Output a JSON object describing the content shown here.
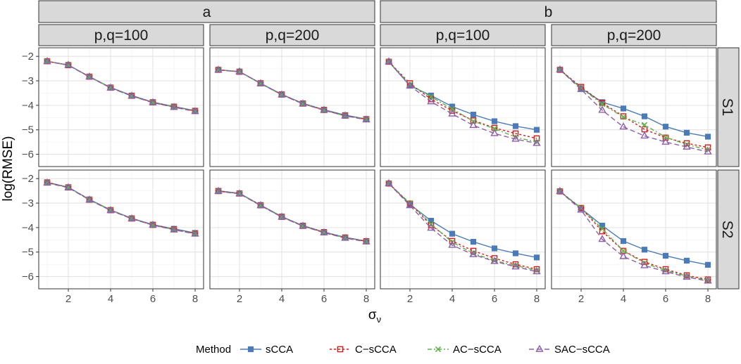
{
  "chart_data": {
    "type": "line",
    "ylabel": "log(RMSE)",
    "xlabel_main": "σ",
    "xlabel_sub": "ν",
    "x": [
      1,
      2,
      3,
      4,
      5,
      6,
      7,
      8
    ],
    "xticks": [
      2,
      4,
      6,
      8
    ],
    "xlim": [
      0.6,
      8.4
    ],
    "ylim": [
      -6.5,
      -1.65
    ],
    "yticks": [
      -2,
      -3,
      -4,
      -5,
      -6
    ],
    "yticklabels": [
      "−2",
      "−3",
      "−4",
      "−5",
      "−6"
    ],
    "groups": [
      "a",
      "b"
    ],
    "columns": [
      {
        "group": "a",
        "label": "p,q=100"
      },
      {
        "group": "a",
        "label": "p,q=200"
      },
      {
        "group": "b",
        "label": "p,q=100"
      },
      {
        "group": "b",
        "label": "p,q=200"
      }
    ],
    "rows": [
      "S1",
      "S2"
    ],
    "legend": {
      "title": "Method",
      "position": "bottom",
      "entries": [
        {
          "name": "sCCA",
          "color": "#4a7bb7",
          "marker": "square",
          "dash": "solid"
        },
        {
          "name": "C−sCCA",
          "color": "#d7191c",
          "marker": "open-square",
          "dash": "dotted"
        },
        {
          "name": "AC−sCCA",
          "color": "#5fb04a",
          "marker": "x",
          "dash": "dashdot"
        },
        {
          "name": "SAC−sCCA",
          "color": "#8e5fa8",
          "marker": "open-triangle",
          "dash": "dashed"
        }
      ]
    },
    "panels": [
      {
        "row": "S1",
        "col": 0,
        "series": [
          {
            "name": "sCCA",
            "values": [
              -2.2,
              -2.35,
              -2.83,
              -3.27,
              -3.6,
              -3.87,
              -4.05,
              -4.22
            ]
          },
          {
            "name": "C−sCCA",
            "values": [
              -2.2,
              -2.36,
              -2.83,
              -3.28,
              -3.61,
              -3.88,
              -4.06,
              -4.23
            ]
          },
          {
            "name": "AC−sCCA",
            "values": [
              -2.2,
              -2.36,
              -2.84,
              -3.28,
              -3.62,
              -3.89,
              -4.07,
              -4.24
            ]
          },
          {
            "name": "SAC−sCCA",
            "values": [
              -2.21,
              -2.36,
              -2.84,
              -3.29,
              -3.62,
              -3.89,
              -4.08,
              -4.25
            ]
          }
        ]
      },
      {
        "row": "S1",
        "col": 1,
        "series": [
          {
            "name": "sCCA",
            "values": [
              -2.55,
              -2.62,
              -3.1,
              -3.55,
              -3.92,
              -4.18,
              -4.4,
              -4.56
            ]
          },
          {
            "name": "C−sCCA",
            "values": [
              -2.55,
              -2.63,
              -3.1,
              -3.56,
              -3.93,
              -4.19,
              -4.42,
              -4.57
            ]
          },
          {
            "name": "AC−sCCA",
            "values": [
              -2.55,
              -2.63,
              -3.11,
              -3.57,
              -3.94,
              -4.2,
              -4.43,
              -4.58
            ]
          },
          {
            "name": "SAC−sCCA",
            "values": [
              -2.56,
              -2.63,
              -3.11,
              -3.57,
              -3.94,
              -4.2,
              -4.43,
              -4.59
            ]
          }
        ]
      },
      {
        "row": "S1",
        "col": 2,
        "series": [
          {
            "name": "sCCA",
            "values": [
              -2.22,
              -3.2,
              -3.6,
              -4.05,
              -4.38,
              -4.65,
              -4.85,
              -5.0
            ]
          },
          {
            "name": "C−sCCA",
            "values": [
              -2.22,
              -3.1,
              -3.75,
              -4.22,
              -4.62,
              -4.92,
              -5.15,
              -5.35
            ]
          },
          {
            "name": "AC−sCCA",
            "values": [
              -2.22,
              -3.15,
              -3.65,
              -4.15,
              -4.65,
              -4.95,
              -5.3,
              -5.5
            ]
          },
          {
            "name": "SAC−sCCA",
            "values": [
              -2.22,
              -3.2,
              -3.85,
              -4.35,
              -4.82,
              -5.15,
              -5.38,
              -5.55
            ]
          }
        ]
      },
      {
        "row": "S1",
        "col": 3,
        "series": [
          {
            "name": "sCCA",
            "values": [
              -2.55,
              -3.3,
              -3.87,
              -4.13,
              -4.45,
              -4.87,
              -5.12,
              -5.28
            ]
          },
          {
            "name": "C−sCCA",
            "values": [
              -2.55,
              -3.25,
              -3.9,
              -4.45,
              -4.98,
              -5.32,
              -5.55,
              -5.72
            ]
          },
          {
            "name": "AC−sCCA",
            "values": [
              -2.55,
              -3.3,
              -3.95,
              -4.48,
              -4.8,
              -5.3,
              -5.6,
              -5.82
            ]
          },
          {
            "name": "SAC−sCCA",
            "values": [
              -2.55,
              -3.35,
              -4.2,
              -4.88,
              -5.25,
              -5.5,
              -5.7,
              -5.9
            ]
          }
        ]
      },
      {
        "row": "S2",
        "col": 0,
        "series": [
          {
            "name": "sCCA",
            "values": [
              -2.15,
              -2.35,
              -2.85,
              -3.28,
              -3.62,
              -3.88,
              -4.05,
              -4.22
            ]
          },
          {
            "name": "C−sCCA",
            "values": [
              -2.16,
              -2.36,
              -2.86,
              -3.29,
              -3.63,
              -3.89,
              -4.07,
              -4.24
            ]
          },
          {
            "name": "AC−sCCA",
            "values": [
              -2.17,
              -2.36,
              -2.86,
              -3.29,
              -3.63,
              -3.9,
              -4.08,
              -4.25
            ]
          },
          {
            "name": "SAC−sCCA",
            "values": [
              -2.18,
              -2.37,
              -2.87,
              -3.3,
              -3.64,
              -3.9,
              -4.09,
              -4.26
            ]
          }
        ]
      },
      {
        "row": "S2",
        "col": 1,
        "series": [
          {
            "name": "sCCA",
            "values": [
              -2.5,
              -2.6,
              -3.08,
              -3.55,
              -3.92,
              -4.18,
              -4.4,
              -4.55
            ]
          },
          {
            "name": "C−sCCA",
            "values": [
              -2.51,
              -2.61,
              -3.09,
              -3.56,
              -3.93,
              -4.19,
              -4.41,
              -4.56
            ]
          },
          {
            "name": "AC−sCCA",
            "values": [
              -2.52,
              -2.61,
              -3.1,
              -3.57,
              -3.94,
              -4.2,
              -4.42,
              -4.57
            ]
          },
          {
            "name": "SAC−sCCA",
            "values": [
              -2.52,
              -2.62,
              -3.1,
              -3.57,
              -3.94,
              -4.21,
              -4.43,
              -4.58
            ]
          }
        ]
      },
      {
        "row": "S2",
        "col": 2,
        "series": [
          {
            "name": "sCCA",
            "values": [
              -2.2,
              -3.05,
              -3.72,
              -4.25,
              -4.58,
              -4.85,
              -5.05,
              -5.22
            ]
          },
          {
            "name": "C−sCCA",
            "values": [
              -2.2,
              -3.02,
              -3.9,
              -4.55,
              -4.95,
              -5.25,
              -5.5,
              -5.7
            ]
          },
          {
            "name": "AC−sCCA",
            "values": [
              -2.2,
              -3.0,
              -3.85,
              -4.6,
              -5.05,
              -5.35,
              -5.55,
              -5.75
            ]
          },
          {
            "name": "SAC−sCCA",
            "values": [
              -2.2,
              -3.1,
              -4.02,
              -4.72,
              -5.1,
              -5.38,
              -5.6,
              -5.8
            ]
          }
        ]
      },
      {
        "row": "S2",
        "col": 3,
        "series": [
          {
            "name": "sCCA",
            "values": [
              -2.52,
              -3.22,
              -3.92,
              -4.55,
              -4.9,
              -5.15,
              -5.35,
              -5.52
            ]
          },
          {
            "name": "C−sCCA",
            "values": [
              -2.52,
              -3.2,
              -4.15,
              -4.95,
              -5.4,
              -5.7,
              -5.95,
              -6.12
            ]
          },
          {
            "name": "AC−sCCA",
            "values": [
              -2.52,
              -3.2,
              -4.05,
              -4.95,
              -5.45,
              -5.75,
              -5.98,
              -6.15
            ]
          },
          {
            "name": "SAC−sCCA",
            "values": [
              -2.52,
              -3.28,
              -4.48,
              -5.18,
              -5.55,
              -5.8,
              -6.02,
              -6.18
            ]
          }
        ]
      }
    ]
  }
}
